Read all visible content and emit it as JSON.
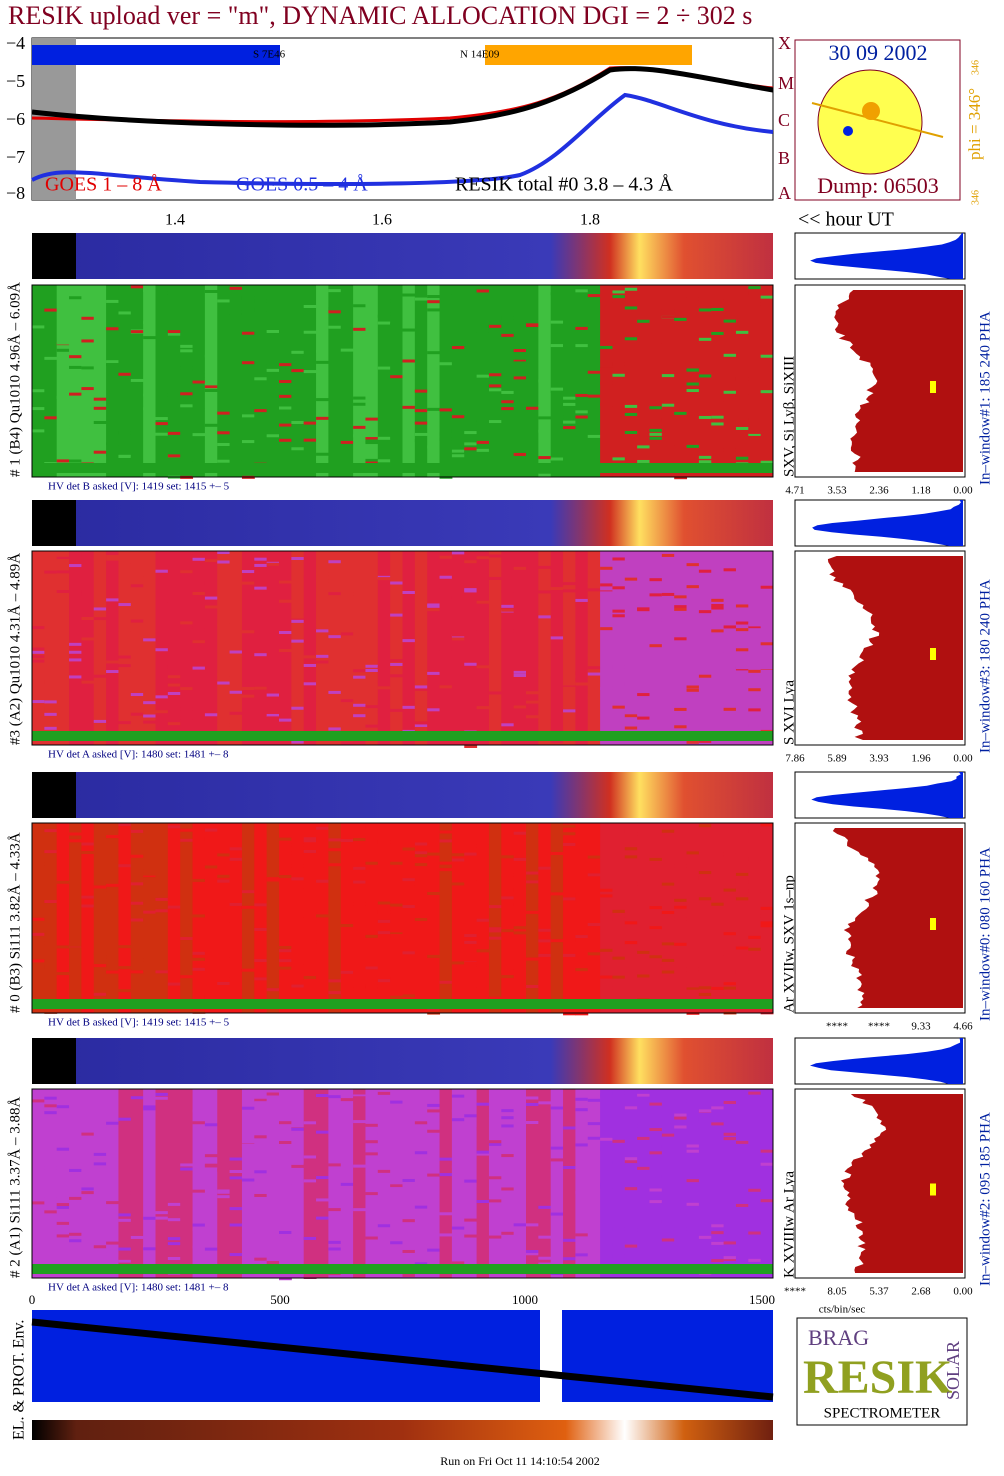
{
  "header": {
    "title": "RESIK upload ver = \"m\", DYNAMIC ALLOCATION  DGI =   2 ÷ 302 s"
  },
  "top_plot": {
    "yticks": [
      "−4",
      "−5",
      "−6",
      "−7",
      "−8"
    ],
    "classes": [
      "X",
      "M",
      "C",
      "B",
      "A"
    ],
    "bars": [
      "S 7E46",
      "N 14E09"
    ],
    "legend": [
      "GOES 1 – 8 Å",
      "GOES 0.5 – 4 Å",
      "RESIK total #0  3.8 – 4.3 Å"
    ],
    "xticks": [
      "1.4",
      "1.6",
      "1.8"
    ],
    "xlabel": "<< hour UT"
  },
  "sun_box": {
    "date": "30 09 2002",
    "dump": "Dump: 06503",
    "phi": "phi = 346°",
    "phi_small": "346",
    "corner": "346"
  },
  "panels": [
    {
      "label": "# 1 (B4) Qu1010 4.96Å – 6.09Å",
      "lines": "SXV, Si Lyβ, SiXIII",
      "window": "In–window#1:  185 240 PHA",
      "hv": "HV det B asked [V]:  1419 set:  1415 +–   5",
      "ticks": [
        "4.71",
        "3.53",
        "2.36",
        "1.18",
        "0.00"
      ]
    },
    {
      "label": "#3 (A2) Qu1010  4.31Å – 4.89Å",
      "lines": "S XVI Lya",
      "window": "In–window#3:  180 240 PHA",
      "hv": "HV det A asked [V]:  1480 set:  1481 +–   8",
      "ticks": [
        "7.86",
        "5.89",
        "3.93",
        "1.96",
        "0.00"
      ]
    },
    {
      "label": "# 0 (B3) Si111  3.82Å – 4.33Å",
      "lines": "Ar XVIIw,  SXV 1s–np",
      "window": "In–window#0:  080 160 PHA",
      "hv": "HV det B asked [V]:  1419 set:  1415 +–   5",
      "ticks": [
        "****",
        "****",
        "9.33",
        "4.66"
      ]
    },
    {
      "label": "# 2 (A1) Si111  3.37Å – 3.88Å",
      "lines": "K XVIIIw   Ar Lya",
      "window": "In–window#2:  095 185 PHA",
      "hv": "HV det A asked [V]:  1480 set:  1481 +–   8",
      "ticks": [
        "****",
        "8.05",
        "5.37",
        "2.68",
        "0.00"
      ]
    }
  ],
  "hist_unit": "cts/bin/sec",
  "bottom": {
    "xticks": [
      "0",
      "500",
      "1000",
      "1500"
    ],
    "ylabel": "EL. & PROT. Env."
  },
  "logo": {
    "brag": "BRAG",
    "resik": "RESIK",
    "solar": "SOLAR",
    "spectrometer": "SPECTROMETER"
  },
  "footer": "Run on Fri Oct 11 14:10:54 2002"
}
